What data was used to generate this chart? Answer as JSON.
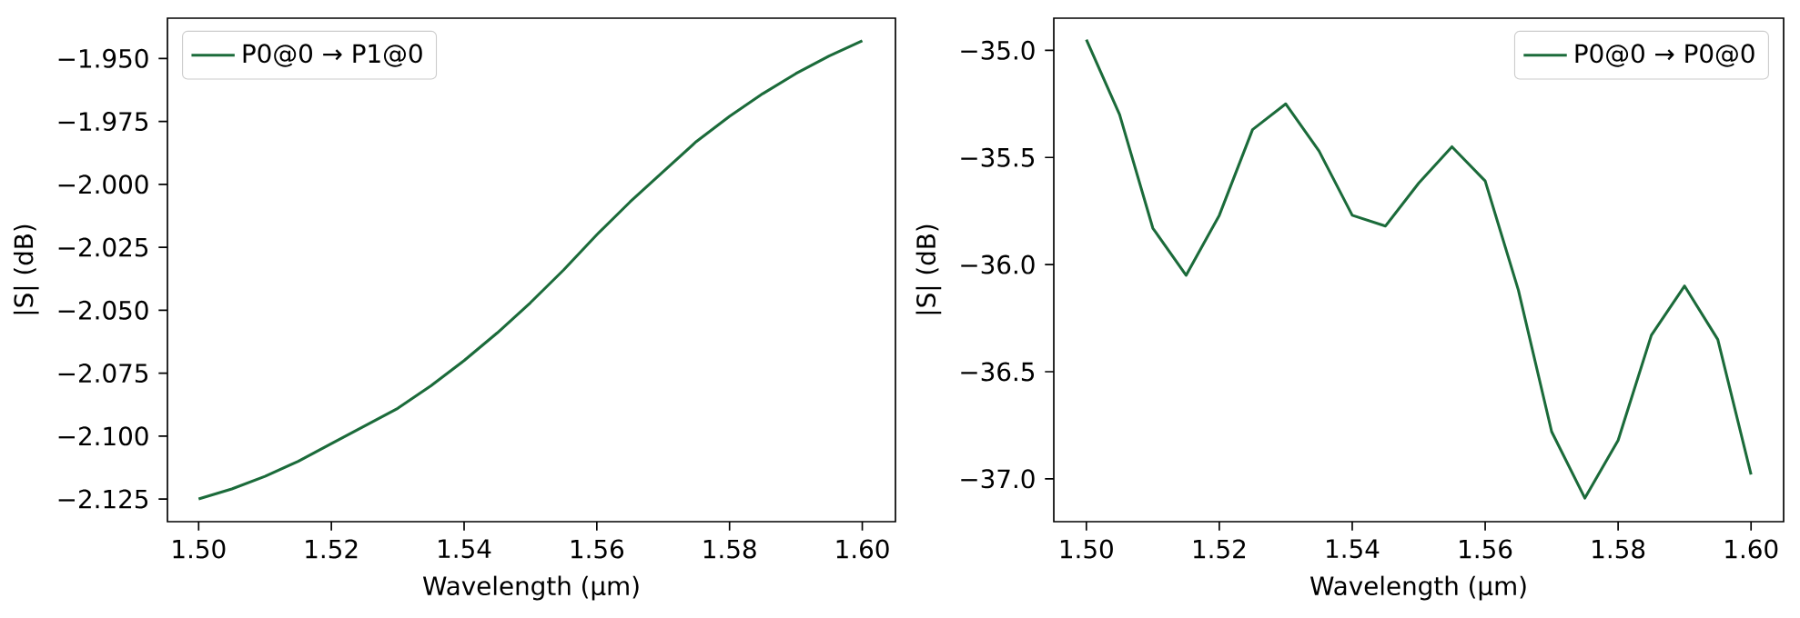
{
  "chart_data": [
    {
      "type": "line",
      "xlabel": "Wavelength (µm)",
      "ylabel": "|S| (dB)",
      "x": [
        1.5,
        1.505,
        1.51,
        1.515,
        1.52,
        1.525,
        1.53,
        1.535,
        1.54,
        1.545,
        1.55,
        1.555,
        1.56,
        1.565,
        1.57,
        1.575,
        1.58,
        1.585,
        1.59,
        1.595,
        1.6
      ],
      "series": [
        {
          "name": "P0@0 → P1@0",
          "color": "#1b6b3a",
          "values": [
            -2.125,
            -2.121,
            -2.116,
            -2.11,
            -2.103,
            -2.096,
            -2.089,
            -2.08,
            -2.07,
            -2.059,
            -2.047,
            -2.034,
            -2.02,
            -2.007,
            -1.995,
            -1.983,
            -1.973,
            -1.964,
            -1.956,
            -1.949,
            -1.943
          ]
        }
      ],
      "xlim": [
        1.4953,
        1.605
      ],
      "ylim": [
        -2.134,
        -1.934
      ],
      "xticks": [
        {
          "value": 1.5,
          "label": "1.50"
        },
        {
          "value": 1.52,
          "label": "1.52"
        },
        {
          "value": 1.54,
          "label": "1.54"
        },
        {
          "value": 1.56,
          "label": "1.56"
        },
        {
          "value": 1.58,
          "label": "1.58"
        },
        {
          "value": 1.6,
          "label": "1.60"
        }
      ],
      "yticks": [
        {
          "value": -2.125,
          "label": "−2.125"
        },
        {
          "value": -2.1,
          "label": "−2.100"
        },
        {
          "value": -2.075,
          "label": "−2.075"
        },
        {
          "value": -2.05,
          "label": "−2.050"
        },
        {
          "value": -2.025,
          "label": "−2.025"
        },
        {
          "value": -2.0,
          "label": "−2.000"
        },
        {
          "value": -1.975,
          "label": "−1.975"
        },
        {
          "value": -1.95,
          "label": "−1.950"
        }
      ],
      "legend": "top left"
    },
    {
      "type": "line",
      "xlabel": "Wavelength (µm)",
      "ylabel": "|S| (dB)",
      "x": [
        1.5,
        1.505,
        1.51,
        1.515,
        1.52,
        1.525,
        1.53,
        1.535,
        1.54,
        1.545,
        1.55,
        1.555,
        1.56,
        1.565,
        1.57,
        1.575,
        1.58,
        1.585,
        1.59,
        1.595,
        1.6
      ],
      "series": [
        {
          "name": "P0@0 → P0@0",
          "color": "#1b6b3a",
          "values": [
            -34.95,
            -35.3,
            -35.83,
            -36.05,
            -35.77,
            -35.37,
            -35.25,
            -35.47,
            -35.77,
            -35.82,
            -35.62,
            -35.45,
            -35.61,
            -36.12,
            -36.78,
            -37.09,
            -36.82,
            -36.33,
            -36.1,
            -36.35,
            -36.98
          ]
        }
      ],
      "xlim": [
        1.4951,
        1.6049
      ],
      "ylim": [
        -37.2,
        -34.85
      ],
      "xticks": [
        {
          "value": 1.5,
          "label": "1.50"
        },
        {
          "value": 1.52,
          "label": "1.52"
        },
        {
          "value": 1.54,
          "label": "1.54"
        },
        {
          "value": 1.56,
          "label": "1.56"
        },
        {
          "value": 1.58,
          "label": "1.58"
        },
        {
          "value": 1.6,
          "label": "1.60"
        }
      ],
      "yticks": [
        {
          "value": -37.0,
          "label": "−37.0"
        },
        {
          "value": -36.5,
          "label": "−36.5"
        },
        {
          "value": -36.0,
          "label": "−36.0"
        },
        {
          "value": -35.5,
          "label": "−35.5"
        },
        {
          "value": -35.0,
          "label": "−35.0"
        }
      ],
      "legend": "top right"
    }
  ]
}
